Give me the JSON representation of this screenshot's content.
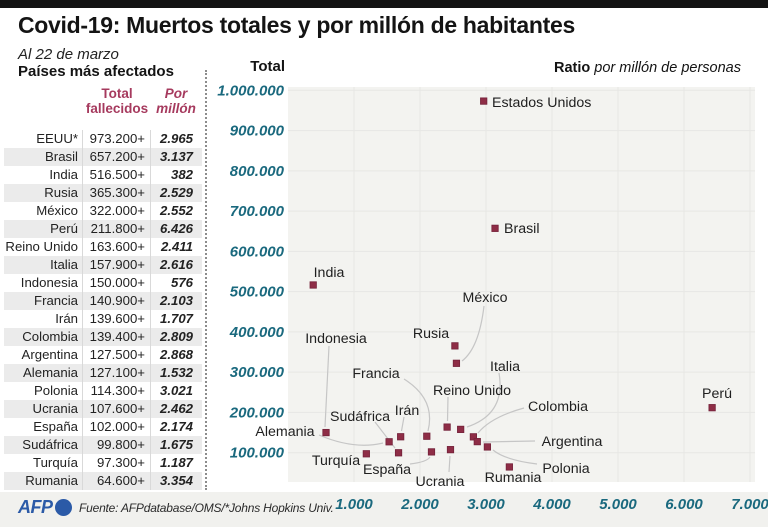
{
  "header": {
    "title": "Covid-19: Muertos totales y por millón de habitantes",
    "subtitle": "Al 22 de marzo"
  },
  "table": {
    "title": "Países más afectados",
    "headers": {
      "deaths1": "Total",
      "deaths2": "fallecidos",
      "ratio1": "Por",
      "ratio2": "millón"
    },
    "rows": [
      {
        "country": "EEUU*",
        "deaths": "973.200+",
        "ratio": "2.965"
      },
      {
        "country": "Brasil",
        "deaths": "657.200+",
        "ratio": "3.137"
      },
      {
        "country": "India",
        "deaths": "516.500+",
        "ratio": "382"
      },
      {
        "country": "Rusia",
        "deaths": "365.300+",
        "ratio": "2.529"
      },
      {
        "country": "México",
        "deaths": "322.000+",
        "ratio": "2.552"
      },
      {
        "country": "Perú",
        "deaths": "211.800+",
        "ratio": "6.426"
      },
      {
        "country": "Reino Unido",
        "deaths": "163.600+",
        "ratio": "2.411"
      },
      {
        "country": "Italia",
        "deaths": "157.900+",
        "ratio": "2.616"
      },
      {
        "country": "Indonesia",
        "deaths": "150.000+",
        "ratio": "576"
      },
      {
        "country": "Francia",
        "deaths": "140.900+",
        "ratio": "2.103"
      },
      {
        "country": "Irán",
        "deaths": "139.600+",
        "ratio": "1.707"
      },
      {
        "country": "Colombia",
        "deaths": "139.400+",
        "ratio": "2.809"
      },
      {
        "country": "Argentina",
        "deaths": "127.500+",
        "ratio": "2.868"
      },
      {
        "country": "Alemania",
        "deaths": "127.100+",
        "ratio": "1.532"
      },
      {
        "country": "Polonia",
        "deaths": "114.300+",
        "ratio": "3.021"
      },
      {
        "country": "Ucrania",
        "deaths": "107.600+",
        "ratio": "2.462"
      },
      {
        "country": "España",
        "deaths": "102.000+",
        "ratio": "2.174"
      },
      {
        "country": "Sudáfrica",
        "deaths": "99.800+",
        "ratio": "1.675"
      },
      {
        "country": "Turquía",
        "deaths": "97.300+",
        "ratio": "1.187"
      },
      {
        "country": "Rumania",
        "deaths": "64.600+",
        "ratio": "3.354"
      }
    ]
  },
  "chart_data": {
    "type": "scatter",
    "y_axis_title": "Total",
    "x_axis_title_bold": "Ratio",
    "x_axis_title_rest": " por millón de personas",
    "x_axis": {
      "ticks": [
        {
          "label": "1.000",
          "value": 1000
        },
        {
          "label": "2.000",
          "value": 2000
        },
        {
          "label": "3.000",
          "value": 3000
        },
        {
          "label": "4.000",
          "value": 4000
        },
        {
          "label": "5.000",
          "value": 5000
        },
        {
          "label": "6.000",
          "value": 6000
        },
        {
          "label": "7.000",
          "value": 7000
        }
      ]
    },
    "y_axis": {
      "ticks": [
        {
          "label": "1.000.000",
          "value": 1000000
        },
        {
          "label": "900.000",
          "value": 900000
        },
        {
          "label": "800.000",
          "value": 800000
        },
        {
          "label": "700.000",
          "value": 700000
        },
        {
          "label": "600.000",
          "value": 600000
        },
        {
          "label": "500.000",
          "value": 500000
        },
        {
          "label": "400.000",
          "value": 400000
        },
        {
          "label": "300.000",
          "value": 300000
        },
        {
          "label": "200.000",
          "value": 200000
        },
        {
          "label": "100.000",
          "value": 100000
        }
      ]
    },
    "xlim": [
      0,
      7080
    ],
    "ylim": [
      25000,
      1010000
    ],
    "grid": true,
    "points": [
      {
        "name": "Estados Unidos",
        "total": 973200,
        "per_million": 2965
      },
      {
        "name": "Brasil",
        "total": 657200,
        "per_million": 3137
      },
      {
        "name": "India",
        "total": 516500,
        "per_million": 382
      },
      {
        "name": "Rusia",
        "total": 365300,
        "per_million": 2529
      },
      {
        "name": "México",
        "total": 322000,
        "per_million": 2552
      },
      {
        "name": "Perú",
        "total": 211800,
        "per_million": 6426
      },
      {
        "name": "Reino Unido",
        "total": 163600,
        "per_million": 2411
      },
      {
        "name": "Italia",
        "total": 157900,
        "per_million": 2616
      },
      {
        "name": "Indonesia",
        "total": 150000,
        "per_million": 576
      },
      {
        "name": "Francia",
        "total": 140900,
        "per_million": 2103
      },
      {
        "name": "Irán",
        "total": 139600,
        "per_million": 1707
      },
      {
        "name": "Colombia",
        "total": 139400,
        "per_million": 2809
      },
      {
        "name": "Argentina",
        "total": 127500,
        "per_million": 2868
      },
      {
        "name": "Alemania",
        "total": 127100,
        "per_million": 1532
      },
      {
        "name": "Polonia",
        "total": 114300,
        "per_million": 3021
      },
      {
        "name": "Ucrania",
        "total": 107600,
        "per_million": 2462
      },
      {
        "name": "España",
        "total": 102000,
        "per_million": 2174
      },
      {
        "name": "Sudáfrica",
        "total": 99800,
        "per_million": 1675
      },
      {
        "name": "Turquía",
        "total": 97300,
        "per_million": 1187
      },
      {
        "name": "Rumania",
        "total": 64600,
        "per_million": 3354
      }
    ],
    "colors": {
      "point": "#8e2d46",
      "point_border": "#74223a",
      "axis_text": "#1a697e",
      "plot_bg": "#f3f3f0",
      "grid_line": "#e7e7e4",
      "leader_line": "#c6c6c6",
      "label_text": "#1f1f1f"
    }
  },
  "footer": {
    "afp": "AFP",
    "source": "Fuente: AFPdatabase/OMS/*Johns Hopkins Univ."
  }
}
